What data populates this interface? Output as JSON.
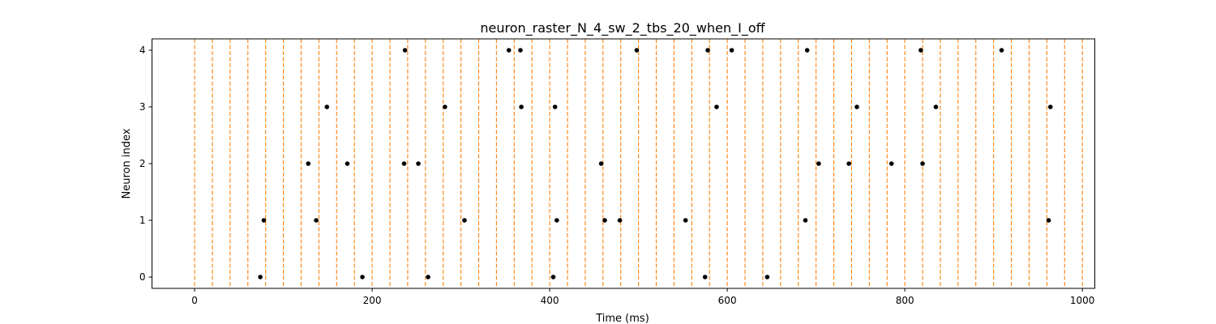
{
  "chart_data": {
    "type": "scatter",
    "title": "neuron_raster_N_4_sw_2_tbs_20_when_I_off",
    "xlabel": "Time (ms)",
    "ylabel": "Neuron index",
    "xlim": [
      -48,
      1014
    ],
    "ylim": [
      -0.2,
      4.2
    ],
    "xticks": [
      0,
      200,
      400,
      600,
      800,
      1000
    ],
    "yticks": [
      0,
      1,
      2,
      3,
      4
    ],
    "grid": false,
    "marker_color": "#000000",
    "vline_color": "#ff7f0e",
    "vline_style": "dashed",
    "vlines_x": [
      0,
      20,
      40,
      60,
      80,
      100,
      120,
      140,
      160,
      180,
      200,
      220,
      240,
      260,
      280,
      300,
      320,
      340,
      360,
      380,
      400,
      420,
      440,
      460,
      480,
      500,
      520,
      540,
      560,
      580,
      600,
      620,
      640,
      660,
      680,
      700,
      720,
      740,
      760,
      780,
      800,
      820,
      840,
      860,
      880,
      900,
      920,
      940,
      960,
      980,
      1000
    ],
    "series": [
      {
        "neuron": 0,
        "spike_times": [
          74,
          189,
          263,
          404,
          575,
          645
        ]
      },
      {
        "neuron": 1,
        "spike_times": [
          78,
          137,
          304,
          408,
          462,
          479,
          553,
          688,
          962
        ]
      },
      {
        "neuron": 2,
        "spike_times": [
          128,
          172,
          236,
          252,
          458,
          703,
          737,
          785,
          820
        ]
      },
      {
        "neuron": 3,
        "spike_times": [
          149,
          282,
          368,
          406,
          588,
          746,
          835,
          964
        ]
      },
      {
        "neuron": 4,
        "spike_times": [
          237,
          354,
          367,
          498,
          578,
          605,
          690,
          818,
          909
        ]
      }
    ]
  }
}
